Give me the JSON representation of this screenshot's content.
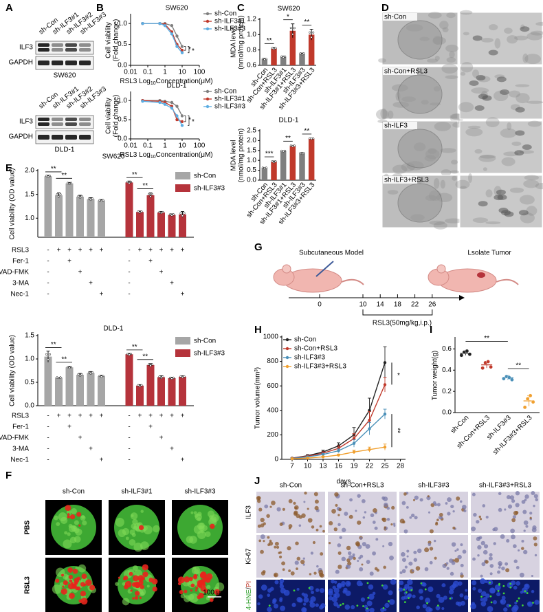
{
  "panel_labels": [
    "A",
    "B",
    "C",
    "D",
    "E",
    "F",
    "G",
    "H",
    "I",
    "J"
  ],
  "blots": [
    {
      "lanes": [
        "sh-Con",
        "sh-ILF3#1",
        "sh-ILF3#2",
        "sh-ILF3#3"
      ],
      "bands": [
        "ILF3",
        "GAPDH"
      ],
      "cell_line": "SW620"
    },
    {
      "lanes": [
        "sh-Con",
        "sh-ILF3#1",
        "sh-ILF3#2",
        "sh-ILF3#3"
      ],
      "bands": [
        "ILF3",
        "GAPDH"
      ],
      "cell_line": "DLD-1"
    }
  ],
  "chart_data": [
    {
      "type": "line",
      "title": "SW620",
      "xlabel": [
        "RSL3 Log",
        "10",
        "Concentration(μM)"
      ],
      "ylabel": [
        "Cell viability",
        "(Fold change)"
      ],
      "xlog": true,
      "x": [
        0.05,
        0.5,
        1,
        2.5,
        5,
        10
      ],
      "xlim": [
        0.01,
        100
      ],
      "xticks": [
        0.01,
        0.1,
        1,
        10,
        100
      ],
      "ylim": [
        0,
        1.2
      ],
      "yticks": [
        {
          "value": 0,
          "label": "0.0"
        },
        0.5,
        {
          "value": 1,
          "label": "1.0"
        }
      ],
      "series": [
        {
          "name": "sh-Con",
          "color": "#7f7f7f",
          "values": [
            1,
            1,
            1,
            0.95,
            0.7,
            0.45
          ]
        },
        {
          "name": "sh-ILF3#1",
          "color": "#c0392b",
          "values": [
            1,
            1,
            0.98,
            0.8,
            0.5,
            0.36
          ]
        },
        {
          "name": "sh-ILF3#3",
          "color": "#5dade2",
          "values": [
            1,
            1,
            0.95,
            0.75,
            0.45,
            0.3
          ]
        }
      ],
      "annotations": [
        "*",
        "*"
      ]
    },
    {
      "type": "line",
      "title": "DLD-1",
      "xlabel": [
        "RSL3 Log",
        "10",
        "Concentration(μM)"
      ],
      "ylabel": [
        "Cell viability",
        "(Fold change)"
      ],
      "xlog": true,
      "x": [
        0.05,
        0.5,
        1,
        2.5,
        5,
        10
      ],
      "xlim": [
        0.01,
        100
      ],
      "xticks": [
        0.01,
        0.1,
        1,
        10,
        100
      ],
      "ylim": [
        0,
        1.2
      ],
      "yticks": [
        {
          "value": 0,
          "label": "0.0"
        },
        0.5,
        {
          "value": 1,
          "label": "1.0"
        }
      ],
      "series": [
        {
          "name": "sh-Con",
          "color": "#7f7f7f",
          "values": [
            1,
            1,
            0.98,
            0.95,
            0.85,
            0.6
          ]
        },
        {
          "name": "sh-ILF3#1",
          "color": "#c0392b",
          "values": [
            1,
            0.98,
            0.95,
            0.85,
            0.5,
            0.45
          ]
        },
        {
          "name": "sh-ILF3#3",
          "color": "#5dade2",
          "values": [
            0.98,
            0.95,
            0.9,
            0.8,
            0.6,
            0.35
          ]
        }
      ],
      "annotations": [
        "*",
        "*"
      ]
    },
    {
      "type": "bar",
      "title": "SW620",
      "ylabel": [
        "MDA level",
        "(nmol/mg protein)"
      ],
      "categories": [
        "sh-Con",
        "sh-Con+RSL3",
        "sh-ILF3#1",
        "sh-ILF3#1+RSL3",
        "sh-ILF3#3",
        "sh-ILF3#3+RSL3"
      ],
      "values": [
        0.68,
        0.82,
        0.71,
        1.05,
        0.75,
        1.0
      ],
      "errors": [
        0.01,
        0.01,
        0.01,
        0.09,
        0.01,
        0.07
      ],
      "colors": [
        "#7f7f7f",
        "#c0392b",
        "#7f7f7f",
        "#c0392b",
        "#7f7f7f",
        "#c0392b"
      ],
      "ylim": [
        0.6,
        1.2
      ],
      "yticks": [
        0.6,
        0.8,
        {
          "value": 1,
          "label": "1.0"
        },
        1.2
      ],
      "annotations": [
        "**",
        "*",
        "**"
      ]
    },
    {
      "type": "bar",
      "title": "DLD-1",
      "ylabel": [
        "MDA level",
        "(nmol/mg protein)"
      ],
      "categories": [
        "sh-Con",
        "sh-Con+RSL3",
        "sh-ILF3#1",
        "sh-ILF3#1+RSL3",
        "sh-ILF3#3",
        "sh-ILF3#3+RSL3"
      ],
      "values": [
        0.62,
        0.93,
        1.47,
        1.73,
        1.35,
        2.1
      ],
      "errors": [
        0.02,
        0.04,
        0.02,
        0.03,
        0.04,
        0.02
      ],
      "colors": [
        "#7f7f7f",
        "#c0392b",
        "#7f7f7f",
        "#c0392b",
        "#7f7f7f",
        "#c0392b"
      ],
      "ylim": [
        0,
        2.5
      ],
      "yticks": [
        {
          "value": 0,
          "label": "0.0"
        },
        0.5,
        {
          "value": 1,
          "label": "1.0"
        },
        1.5,
        {
          "value": 2,
          "label": "2.0"
        },
        2.5
      ],
      "annotations": [
        "***",
        "**",
        "**"
      ]
    },
    {
      "type": "grouped-bar",
      "title": "SW620",
      "ylabel": "Cell viability (OD value)",
      "series": [
        {
          "name": "sh-Con",
          "color": "#a6a6a6",
          "values": [
            1.88,
            1.48,
            1.73,
            1.45,
            1.4,
            1.37
          ],
          "errors": [
            0.02,
            0.05,
            0.02,
            0.03,
            0.03,
            0.02
          ]
        },
        {
          "name": "sh-ILF3#3",
          "color": "#b5333b",
          "values": [
            1.75,
            1.13,
            1.48,
            1.12,
            1.07,
            1.08
          ],
          "errors": [
            0.03,
            0.02,
            0.05,
            0.02,
            0.02,
            0.06
          ]
        }
      ],
      "ylim": [
        0.6,
        2.0
      ],
      "yticks": [
        {
          "value": 1,
          "label": "1.0"
        },
        1.5,
        {
          "value": 2,
          "label": "2.0"
        }
      ],
      "annotations": [
        "**",
        "**",
        "**",
        "**"
      ],
      "treatments": [
        {
          "name": "RSL3",
          "marks": [
            "-",
            "+",
            "+",
            "+",
            "+",
            "+",
            "-",
            "+",
            "+",
            "+",
            "+",
            "+"
          ]
        },
        {
          "name": "Fer-1",
          "marks": [
            "-",
            null,
            "+",
            null,
            null,
            null,
            "-",
            null,
            "+",
            null,
            null,
            null
          ]
        },
        {
          "name": "Z-VAD-FMK",
          "marks": [
            "-",
            null,
            null,
            "+",
            null,
            null,
            "-",
            null,
            null,
            "+",
            null,
            null
          ]
        },
        {
          "name": "3-MA",
          "marks": [
            "-",
            null,
            null,
            null,
            "+",
            null,
            "-",
            null,
            null,
            null,
            "+",
            null
          ]
        },
        {
          "name": "Nec-1",
          "marks": [
            "-",
            null,
            null,
            null,
            null,
            "+",
            "-",
            null,
            null,
            null,
            null,
            "+"
          ]
        }
      ]
    },
    {
      "type": "grouped-bar",
      "title": "DLD-1",
      "ylabel": "Cell viability (OD value)",
      "series": [
        {
          "name": "sh-Con",
          "color": "#a6a6a6",
          "values": [
            1.05,
            0.6,
            0.82,
            0.66,
            0.7,
            0.63
          ],
          "errors": [
            0.12,
            0.01,
            0.02,
            0.03,
            0.03,
            0.02
          ]
        },
        {
          "name": "sh-ILF3#3",
          "color": "#b5333b",
          "values": [
            1.1,
            0.43,
            0.87,
            0.61,
            0.59,
            0.62
          ],
          "errors": [
            0.02,
            0.02,
            0.03,
            0.03,
            0.02,
            0.02
          ]
        }
      ],
      "ylim": [
        0,
        1.5
      ],
      "yticks": [
        {
          "value": 0,
          "label": "0.0"
        },
        0.5,
        {
          "value": 1,
          "label": "1.0"
        },
        1.5
      ],
      "annotations": [
        "**",
        "**",
        "**",
        "**"
      ],
      "treatments": [
        {
          "name": "RSL3",
          "marks": [
            "-",
            "+",
            "+",
            "+",
            "+",
            "+",
            "-",
            "+",
            "+",
            "+",
            "+",
            "+"
          ]
        },
        {
          "name": "Fer-1",
          "marks": [
            "-",
            null,
            "+",
            null,
            null,
            null,
            "-",
            null,
            "+",
            null,
            null,
            null
          ]
        },
        {
          "name": "Z-VAD-FMK",
          "marks": [
            "-",
            null,
            null,
            "+",
            null,
            null,
            "-",
            null,
            null,
            "+",
            null,
            null
          ]
        },
        {
          "name": "3-MA",
          "marks": [
            "-",
            null,
            null,
            null,
            "+",
            null,
            "-",
            null,
            null,
            null,
            "+",
            null
          ]
        },
        {
          "name": "Nec-1",
          "marks": [
            "-",
            null,
            null,
            null,
            null,
            "+",
            "-",
            null,
            null,
            null,
            null,
            "+"
          ]
        }
      ]
    },
    {
      "type": "line",
      "xlabel": [
        "days"
      ],
      "ylabel": "Tumor volume(mm³)",
      "x": [
        7,
        10,
        13,
        16,
        19,
        22,
        25
      ],
      "xlim": [
        5,
        29
      ],
      "xticks": [
        7,
        10,
        13,
        16,
        19,
        22,
        25,
        28
      ],
      "ylim": [
        0,
        1000
      ],
      "yticks": [
        0,
        200,
        400,
        600,
        800,
        1000
      ],
      "series": [
        {
          "name": "sh-Con",
          "color": "#222222",
          "values": [
            10,
            30,
            60,
            110,
            200,
            400,
            790
          ],
          "errors": [
            3,
            8,
            15,
            25,
            60,
            100,
            130
          ]
        },
        {
          "name": "sh-Con+RSL3",
          "color": "#c0392b",
          "values": [
            10,
            25,
            50,
            90,
            170,
            320,
            610
          ],
          "errors": [
            3,
            6,
            12,
            20,
            40,
            70,
            60
          ]
        },
        {
          "name": "sh-ILF3#3",
          "color": "#4a90b8",
          "values": [
            8,
            20,
            40,
            70,
            130,
            250,
            370
          ],
          "errors": [
            2,
            5,
            10,
            15,
            30,
            50,
            40
          ]
        },
        {
          "name": "sh-ILF3#3+RSL3",
          "color": "#f0a030",
          "values": [
            5,
            10,
            20,
            35,
            60,
            80,
            100
          ],
          "errors": [
            1,
            3,
            5,
            8,
            15,
            20,
            25
          ]
        }
      ],
      "annotations": [
        "*",
        "**"
      ]
    },
    {
      "type": "dot",
      "ylabel": "Tumor weight(g)",
      "categories": [
        "sh-Con",
        "sh-Con+RSL3",
        "sh-ILF3#3",
        "sh-ILF3#3+RSL3"
      ],
      "values": [
        0.56,
        0.45,
        0.33,
        0.11
      ],
      "errors": [
        0.02,
        0.03,
        0.02,
        0.05
      ],
      "points": [
        [
          0.54,
          0.57,
          0.58,
          0.55
        ],
        [
          0.42,
          0.47,
          0.48,
          0.43
        ],
        [
          0.32,
          0.34,
          0.33,
          0.31
        ],
        [
          0.05,
          0.13,
          0.16,
          0.1
        ]
      ],
      "colors": [
        "#222222",
        "#c0392b",
        "#4a90b8",
        "#f0a030"
      ],
      "ylim": [
        0,
        0.7
      ],
      "yticks": [
        {
          "value": 0,
          "label": "0.0"
        },
        0.2,
        0.4,
        0.6
      ],
      "annotations": [
        "**",
        "**"
      ]
    }
  ],
  "tem": {
    "labels": [
      "sh-Con",
      "sh-Con+RSL3",
      "sh-ILF3",
      "sh-ILF3+RSL3"
    ]
  },
  "spheroids": {
    "columns": [
      "sh-Con",
      "sh-ILF3#1",
      "sh-ILF3#3"
    ],
    "rows": [
      "PBS",
      "RSL3"
    ],
    "scale_bar": "100 μm"
  },
  "schedule": {
    "start_label": "Subcutaneous Model",
    "end_label": "Lsolate Tumor",
    "days": [
      0,
      10,
      14,
      18,
      22,
      26
    ],
    "treatment": "RSL3(50mg/kg,i.p.)"
  },
  "ihc": {
    "columns": [
      "sh-Con",
      "sh-Con+RSL3",
      "sh-ILF3#3",
      "sh-ILF3#3+RSL3"
    ],
    "rows": [
      "ILF3",
      "Ki-67"
    ],
    "stain_row": [
      "4-HNE",
      "/",
      "PI"
    ]
  }
}
